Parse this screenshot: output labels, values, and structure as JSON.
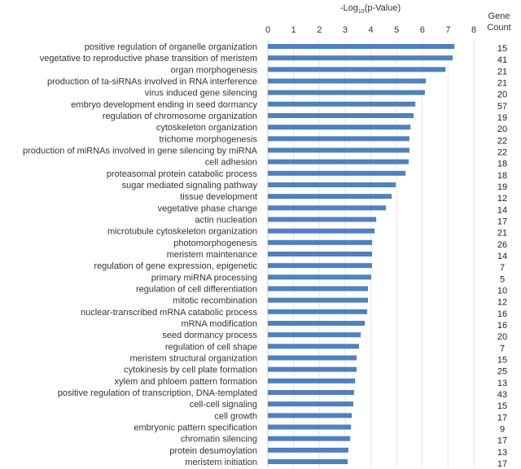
{
  "chart_data": {
    "type": "bar",
    "orientation": "horizontal",
    "title": "",
    "xlabel": "-Log10(p-Value)",
    "xlabel_main": "-Log",
    "xlabel_sub": "10",
    "xlabel_rest": "(p-Value)",
    "xlim": [
      0,
      8
    ],
    "xticks": [
      "0",
      "1",
      "2",
      "3",
      "4",
      "5",
      "6",
      "7",
      "8"
    ],
    "grid": true,
    "bar_color": "#4f81bd",
    "count_header": [
      "Gene",
      "Count"
    ],
    "categories": [
      "positive regulation of organelle organization",
      "vegetative to reproductive phase transition of meristem",
      "organ morphogenesis",
      "production of ta-siRNAs involved in RNA interference",
      "virus induced gene silencing",
      "embryo development ending in seed dormancy",
      "regulation of chromosome organization",
      "cytoskeleton organization",
      "trichome morphogenesis",
      "production of miRNAs involved in gene silencing by miRNA",
      "cell adhesion",
      "proteasomal protein catabolic process",
      "sugar mediated signaling pathway",
      "tissue development",
      "vegetative phase change",
      "actin nucleation",
      "microtubule cytoskeleton organization",
      "photomorphogenesis",
      "meristem maintenance",
      "regulation of gene expression, epigenetic",
      "primary miRNA processing",
      "regulation of cell differentiation",
      "mitotic recombination",
      "nuclear-transcribed mRNA catabolic process",
      "mRNA modification",
      "seed dormancy process",
      "regulation of cell shape",
      "meristem structural organization",
      "cytokinesis by cell plate formation",
      "xylem and phloem pattern formation",
      "positive regulation of transcription, DNA-templated",
      "cell-cell signaling",
      "cell growth",
      "embryonic pattern specification",
      "chromatin silencing",
      "protein desumoylation",
      "meristem initiation"
    ],
    "values": [
      7.25,
      7.18,
      6.9,
      6.14,
      6.1,
      5.73,
      5.66,
      5.54,
      5.5,
      5.5,
      5.47,
      5.35,
      4.97,
      4.81,
      4.59,
      4.21,
      4.15,
      4.05,
      4.05,
      4.05,
      4.02,
      3.89,
      3.89,
      3.86,
      3.77,
      3.61,
      3.54,
      3.45,
      3.45,
      3.39,
      3.35,
      3.32,
      3.26,
      3.23,
      3.2,
      3.13,
      3.1
    ],
    "gene_counts": [
      "15",
      "41",
      "21",
      "21",
      "20",
      "57",
      "19",
      "20",
      "22",
      "22",
      "18",
      "18",
      "19",
      "12",
      "14",
      "17",
      "21",
      "26",
      "14",
      "7",
      "5",
      "10",
      "12",
      "16",
      "16",
      "20",
      "7",
      "15",
      "25",
      "13",
      "43",
      "15",
      "17",
      "9",
      "17",
      "13",
      "17"
    ]
  }
}
